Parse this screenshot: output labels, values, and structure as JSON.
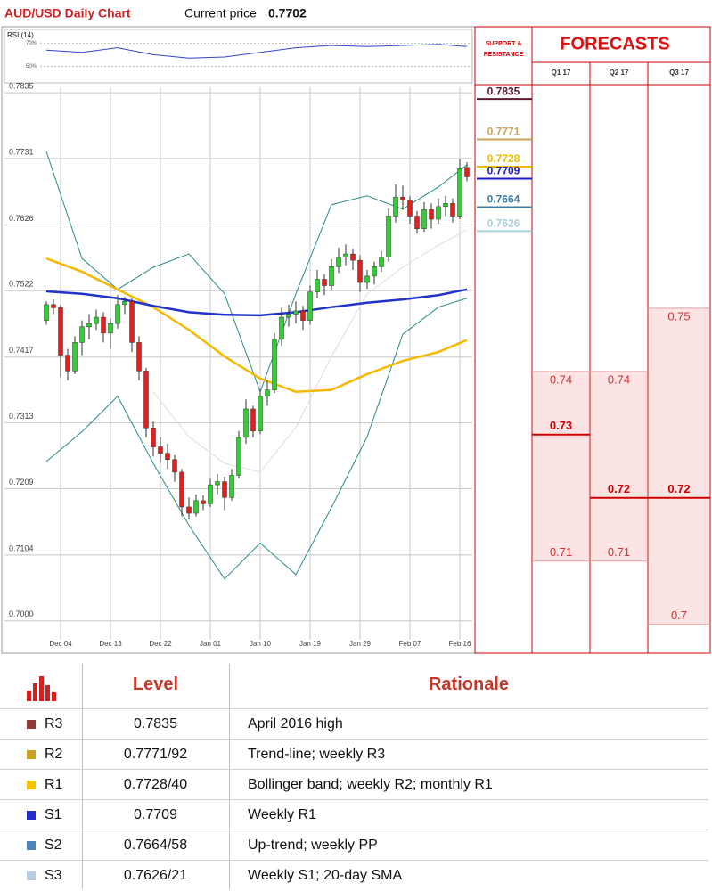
{
  "header": {
    "title": "AUD/USD Daily Chart",
    "current_price_label": "Current price",
    "current_price": 0.7702
  },
  "chart_data": [
    {
      "type": "line",
      "title": "RSI (14)",
      "x": [
        0,
        5,
        10,
        15,
        20,
        25,
        30,
        35,
        40,
        45,
        50,
        55,
        59
      ],
      "values": [
        64,
        62,
        66,
        60,
        57,
        58,
        62,
        66,
        68,
        67,
        68,
        69,
        67
      ],
      "color": "#3344cc",
      "xlim": [
        0,
        59
      ],
      "ylim": [
        38,
        78
      ],
      "yticks": [
        {
          "value": 50,
          "label": "50%"
        },
        {
          "value": 70,
          "label": "70%"
        }
      ]
    },
    {
      "type": "candlestick",
      "categories": [
        null,
        null,
        "Dec 04",
        null,
        null,
        null,
        null,
        null,
        null,
        "Dec 13",
        null,
        null,
        null,
        null,
        null,
        null,
        "Dec 22",
        null,
        null,
        null,
        null,
        null,
        null,
        "Jan 01",
        null,
        null,
        null,
        null,
        null,
        null,
        "Jan 10",
        null,
        null,
        null,
        null,
        null,
        null,
        "Jan 19",
        null,
        null,
        null,
        null,
        null,
        null,
        "Jan 29",
        null,
        null,
        null,
        null,
        null,
        null,
        "Feb 07",
        null,
        null,
        null,
        null,
        null,
        null,
        "Feb 16",
        null
      ],
      "ohlc": [
        [
          0.7475,
          0.7505,
          0.7468,
          0.75
        ],
        [
          0.75,
          0.7508,
          0.7485,
          0.7495
        ],
        [
          0.7495,
          0.75,
          0.7385,
          0.742
        ],
        [
          0.742,
          0.743,
          0.738,
          0.7395
        ],
        [
          0.7395,
          0.745,
          0.739,
          0.744
        ],
        [
          0.744,
          0.7475,
          0.742,
          0.7465
        ],
        [
          0.7465,
          0.7485,
          0.7445,
          0.747
        ],
        [
          0.747,
          0.7492,
          0.746,
          0.748
        ],
        [
          0.748,
          0.7488,
          0.744,
          0.7455
        ],
        [
          0.7455,
          0.7478,
          0.743,
          0.747
        ],
        [
          0.747,
          0.7515,
          0.7462,
          0.75
        ],
        [
          0.75,
          0.7512,
          0.7485,
          0.7505
        ],
        [
          0.7505,
          0.751,
          0.7425,
          0.744
        ],
        [
          0.744,
          0.745,
          0.738,
          0.7395
        ],
        [
          0.7395,
          0.74,
          0.729,
          0.7305
        ],
        [
          0.7305,
          0.7315,
          0.726,
          0.7275
        ],
        [
          0.7275,
          0.729,
          0.725,
          0.7265
        ],
        [
          0.7265,
          0.728,
          0.724,
          0.7255
        ],
        [
          0.7255,
          0.7262,
          0.722,
          0.7235
        ],
        [
          0.7235,
          0.724,
          0.7165,
          0.718
        ],
        [
          0.718,
          0.7195,
          0.716,
          0.717
        ],
        [
          0.717,
          0.72,
          0.7165,
          0.719
        ],
        [
          0.719,
          0.7198,
          0.7175,
          0.7185
        ],
        [
          0.7185,
          0.7225,
          0.718,
          0.7215
        ],
        [
          0.7215,
          0.7232,
          0.72,
          0.722
        ],
        [
          0.722,
          0.7228,
          0.7175,
          0.7195
        ],
        [
          0.7195,
          0.724,
          0.719,
          0.723
        ],
        [
          0.723,
          0.73,
          0.7225,
          0.729
        ],
        [
          0.729,
          0.735,
          0.728,
          0.7335
        ],
        [
          0.7335,
          0.734,
          0.729,
          0.73
        ],
        [
          0.73,
          0.7365,
          0.7295,
          0.7355
        ],
        [
          0.7355,
          0.738,
          0.734,
          0.7365
        ],
        [
          0.7365,
          0.7455,
          0.736,
          0.7445
        ],
        [
          0.7445,
          0.7495,
          0.7435,
          0.748
        ],
        [
          0.748,
          0.75,
          0.7465,
          0.7485
        ],
        [
          0.7485,
          0.7505,
          0.747,
          0.749
        ],
        [
          0.749,
          0.7498,
          0.746,
          0.7475
        ],
        [
          0.7475,
          0.753,
          0.7468,
          0.752
        ],
        [
          0.752,
          0.7555,
          0.751,
          0.754
        ],
        [
          0.754,
          0.7548,
          0.7515,
          0.753
        ],
        [
          0.753,
          0.7572,
          0.7522,
          0.756
        ],
        [
          0.756,
          0.759,
          0.755,
          0.7575
        ],
        [
          0.7575,
          0.7595,
          0.7562,
          0.758
        ],
        [
          0.758,
          0.7588,
          0.7555,
          0.757
        ],
        [
          0.757,
          0.7578,
          0.752,
          0.7535
        ],
        [
          0.7535,
          0.7555,
          0.7525,
          0.7545
        ],
        [
          0.7545,
          0.7568,
          0.7532,
          0.756
        ],
        [
          0.756,
          0.7585,
          0.7552,
          0.7575
        ],
        [
          0.7575,
          0.7652,
          0.7568,
          0.764
        ],
        [
          0.764,
          0.769,
          0.763,
          0.767
        ],
        [
          0.767,
          0.7688,
          0.765,
          0.7665
        ],
        [
          0.7665,
          0.7672,
          0.7628,
          0.764
        ],
        [
          0.764,
          0.7648,
          0.7612,
          0.762
        ],
        [
          0.762,
          0.7662,
          0.7615,
          0.765
        ],
        [
          0.765,
          0.766,
          0.762,
          0.7635
        ],
        [
          0.7635,
          0.7668,
          0.7628,
          0.7655
        ],
        [
          0.7655,
          0.7672,
          0.764,
          0.766
        ],
        [
          0.766,
          0.7668,
          0.763,
          0.764
        ],
        [
          0.764,
          0.773,
          0.7635,
          0.7715
        ],
        [
          0.7717,
          0.7725,
          0.7695,
          0.7702
        ]
      ],
      "up_color": "#33cc33",
      "down_color": "#e02020",
      "ylim": [
        0.697,
        0.7845
      ],
      "yticks": [
        {
          "value": 0.7,
          "label": "0.7000"
        },
        0.7104,
        0.7209,
        0.7313,
        0.7417,
        0.7522,
        0.7626,
        0.7731,
        0.7835
      ],
      "grid": true,
      "overlays": {
        "x": [
          0,
          5,
          10,
          15,
          20,
          25,
          30,
          35,
          40,
          45,
          50,
          55,
          59
        ],
        "series": [
          {
            "color": "#2a8a8a",
            "values": [
              0.7742,
              0.7573,
              0.7524,
              0.7559,
              0.758,
              0.7517,
              0.7362,
              0.7517,
              0.7658,
              0.7672,
              0.7651,
              0.7686,
              0.7721
            ]
          },
          {
            "color": "#2a8a8a",
            "values": [
              0.7252,
              0.7299,
              0.7355,
              0.7249,
              0.7151,
              0.7066,
              0.7123,
              0.7073,
              0.7179,
              0.7291,
              0.7453,
              0.7496,
              0.751
            ]
          },
          {
            "color": "#dddddd",
            "values": [
              null,
              null,
              null,
              0.7362,
              0.7291,
              0.7249,
              0.7235,
              0.7306,
              0.7418,
              0.7517,
              0.7559,
              0.7594,
              0.7618
            ]
          },
          {
            "color": "#f5b800",
            "values": [
              0.7573,
              0.7552,
              0.7524,
              0.7496,
              0.746,
              0.7418,
              0.7383,
              0.7362,
              0.7365,
              0.739,
              0.7411,
              0.7425,
              0.7444
            ]
          },
          {
            "color": "#2233cc",
            "values": [
              0.7521,
              0.7517,
              0.751,
              0.7498,
              0.7488,
              0.7484,
              0.7483,
              0.7488,
              0.7496,
              0.7503,
              0.7508,
              0.7515,
              0.7524
            ]
          }
        ]
      }
    },
    {
      "type": "levels",
      "title": "SUPPORT & RESISTANCE",
      "ylim": [
        0.697,
        0.7845
      ],
      "levels": [
        {
          "value": 0.7835,
          "color": "#5c1a33"
        },
        {
          "value": 0.7771,
          "color": "#c8a35a"
        },
        {
          "value": 0.7728,
          "color": "#f2b800"
        },
        {
          "value": 0.7709,
          "color": "#1a1acc"
        },
        {
          "value": 0.7664,
          "color": "#3f7f9f"
        },
        {
          "value": 0.7626,
          "color": "#a9cfd6"
        }
      ]
    },
    {
      "type": "range",
      "title": "FORECASTS",
      "ylim": [
        0.697,
        0.7845
      ],
      "categories": [
        "Q1 17",
        "Q2 17",
        "Q3 17"
      ],
      "high": [
        0.74,
        0.74,
        0.75
      ],
      "central": [
        0.73,
        0.72,
        0.72
      ],
      "low": [
        0.71,
        0.71,
        0.7
      ],
      "color": "#cc0000",
      "fill": "#fde4e4"
    }
  ],
  "table": {
    "headers": [
      "Level",
      "Rationale"
    ],
    "rows": [
      {
        "name": "R3",
        "level": "0.7835",
        "rationale": "April 2016 high",
        "color": "#953735"
      },
      {
        "name": "R2",
        "level": "0.7771/92",
        "rationale": "Trend-line; weekly R3",
        "color": "#c9a227"
      },
      {
        "name": "R1",
        "level": "0.7728/40",
        "rationale": "Bollinger band; weekly R2; monthly R1",
        "color": "#f5c400"
      },
      {
        "name": "S1",
        "level": "0.7709",
        "rationale": "Weekly R1",
        "color": "#1f2fc8"
      },
      {
        "name": "S2",
        "level": "0.7664/58",
        "rationale": "Up-trend; weekly PP",
        "color": "#4f81bd"
      },
      {
        "name": "S3",
        "level": "0.7626/21",
        "rationale": "Weekly S1; 20-day SMA",
        "color": "#b8cce4"
      }
    ]
  }
}
